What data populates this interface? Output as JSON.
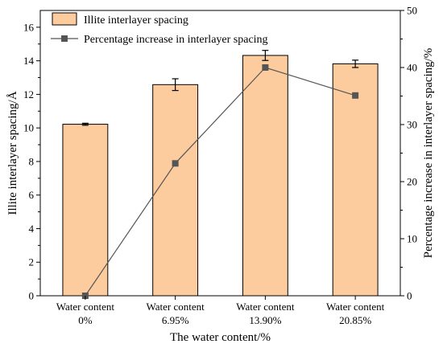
{
  "chart_data": {
    "type": "bar",
    "categories": [
      [
        "Water content",
        "0%"
      ],
      [
        "Water content",
        "6.95%"
      ],
      [
        "Water content",
        "13.90%"
      ],
      [
        "Water content",
        "20.85%"
      ]
    ],
    "xlabel": "The water content/%",
    "ylabel_left": "Illite interlayer spacing/Å",
    "ylabel_right": "Percentage increase in interlayer spacing/%",
    "ylim_left": [
      0,
      17
    ],
    "yticks_left": [
      0,
      2,
      4,
      6,
      8,
      10,
      12,
      14,
      16
    ],
    "ylim_right": [
      0,
      50
    ],
    "yticks_right": [
      0,
      10,
      20,
      30,
      40,
      50
    ],
    "grid": false,
    "legend_position": "top-left",
    "series": [
      {
        "name": "Illite interlayer spacing",
        "kind": "bar",
        "axis": "left",
        "values": [
          10.22,
          12.58,
          14.32,
          13.82
        ],
        "errors": [
          0.06,
          0.35,
          0.3,
          0.22
        ],
        "color": "#FCCB9E",
        "edge_color": "#000000"
      },
      {
        "name": "Percentage increase in interlayer spacing",
        "kind": "line",
        "axis": "right",
        "values": [
          0,
          23.2,
          40.0,
          35.1
        ],
        "color": "#555555",
        "marker": "square"
      }
    ]
  }
}
